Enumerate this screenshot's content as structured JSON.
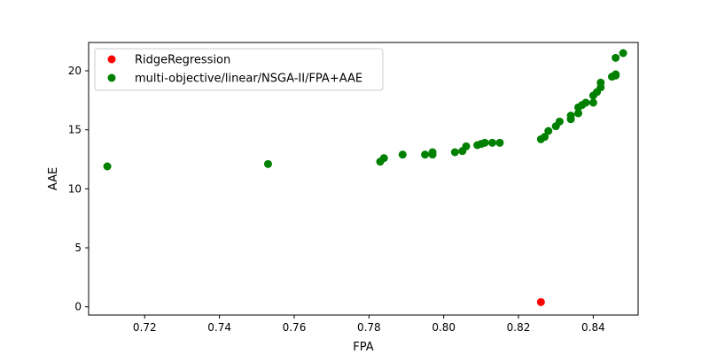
{
  "chart_data": {
    "type": "scatter",
    "xlabel": "FPA",
    "ylabel": "AAE",
    "xlim": [
      0.705,
      0.852
    ],
    "ylim": [
      -0.7,
      22.4
    ],
    "x_ticks": [
      0.72,
      0.74,
      0.76,
      0.78,
      0.8,
      0.82,
      0.84
    ],
    "x_tick_labels": [
      "0.72",
      "0.74",
      "0.76",
      "0.78",
      "0.80",
      "0.82",
      "0.84"
    ],
    "y_ticks": [
      0,
      5,
      10,
      15,
      20
    ],
    "y_tick_labels": [
      "0",
      "5",
      "10",
      "15",
      "20"
    ],
    "grid": false,
    "legend_position": "top-left",
    "series": [
      {
        "name": "RidgeRegression",
        "color": "#ff0000",
        "points": [
          [
            0.826,
            0.4
          ]
        ]
      },
      {
        "name": "multi-objective/linear/NSGA-II/FPA+AAE",
        "color": "#008000",
        "points": [
          [
            0.71,
            11.9
          ],
          [
            0.753,
            12.1
          ],
          [
            0.783,
            12.3
          ],
          [
            0.784,
            12.6
          ],
          [
            0.789,
            12.9
          ],
          [
            0.795,
            12.9
          ],
          [
            0.797,
            12.9
          ],
          [
            0.797,
            13.1
          ],
          [
            0.803,
            13.1
          ],
          [
            0.805,
            13.2
          ],
          [
            0.806,
            13.6
          ],
          [
            0.809,
            13.7
          ],
          [
            0.81,
            13.8
          ],
          [
            0.811,
            13.9
          ],
          [
            0.813,
            13.9
          ],
          [
            0.815,
            13.9
          ],
          [
            0.826,
            14.2
          ],
          [
            0.827,
            14.4
          ],
          [
            0.828,
            14.9
          ],
          [
            0.83,
            15.3
          ],
          [
            0.831,
            15.7
          ],
          [
            0.834,
            15.9
          ],
          [
            0.834,
            16.2
          ],
          [
            0.836,
            16.4
          ],
          [
            0.836,
            16.9
          ],
          [
            0.837,
            17.1
          ],
          [
            0.838,
            17.3
          ],
          [
            0.84,
            17.3
          ],
          [
            0.84,
            17.9
          ],
          [
            0.841,
            18.2
          ],
          [
            0.842,
            18.6
          ],
          [
            0.842,
            19.0
          ],
          [
            0.845,
            19.5
          ],
          [
            0.846,
            19.6
          ],
          [
            0.846,
            19.7
          ],
          [
            0.846,
            21.1
          ],
          [
            0.848,
            21.5
          ]
        ]
      }
    ]
  }
}
